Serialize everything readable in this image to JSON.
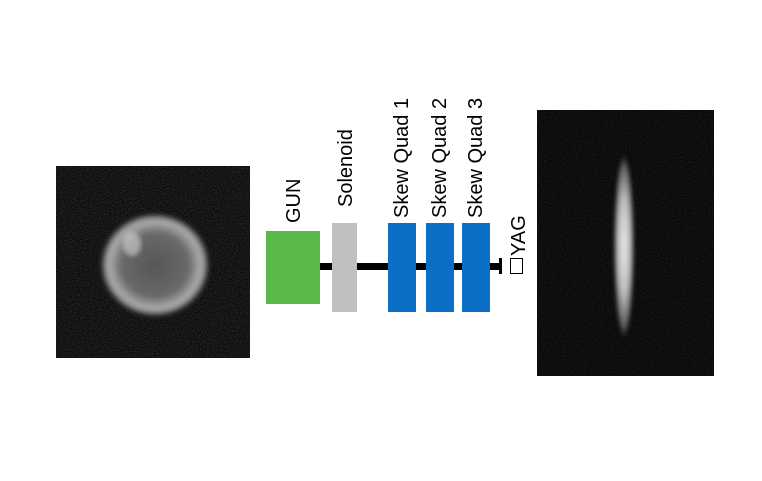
{
  "diagram": {
    "elements": [
      {
        "id": "gun",
        "label": "GUN",
        "color": "#5bb94a"
      },
      {
        "id": "solenoid",
        "label": "Solenoid",
        "color": "#bfbfbf"
      },
      {
        "id": "quad1",
        "label": "Skew Quad 1",
        "color": "#0b6fc6"
      },
      {
        "id": "quad2",
        "label": "Skew Quad 2",
        "color": "#0b6fc6"
      },
      {
        "id": "quad3",
        "label": "Skew Quad 3",
        "color": "#0b6fc6"
      }
    ],
    "screen_label": "YAG"
  }
}
